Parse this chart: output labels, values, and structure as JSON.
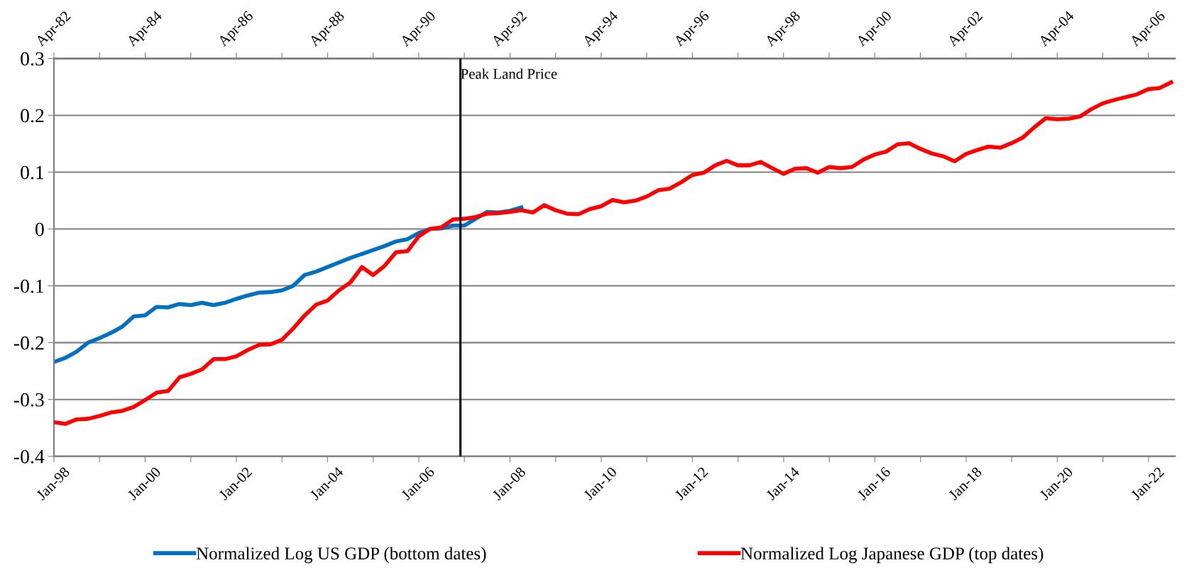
{
  "chart_data": {
    "type": "line",
    "xlim": [
      "1998-01",
      "2022-08"
    ],
    "x2lim": [
      "1982-04",
      "2006-11"
    ],
    "xticks": [
      {
        "value": "1998-01",
        "label": "Jan-98"
      },
      {
        "value": "1999-01",
        "label": null
      },
      {
        "value": "2000-01",
        "label": "Jan-00"
      },
      {
        "value": "2001-01",
        "label": null
      },
      {
        "value": "2002-01",
        "label": "Jan-02"
      },
      {
        "value": "2003-01",
        "label": null
      },
      {
        "value": "2004-01",
        "label": "Jan-04"
      },
      {
        "value": "2005-01",
        "label": null
      },
      {
        "value": "2006-01",
        "label": "Jan-06"
      },
      {
        "value": "2007-01",
        "label": null
      },
      {
        "value": "2008-01",
        "label": "Jan-08"
      },
      {
        "value": "2009-01",
        "label": null
      },
      {
        "value": "2010-01",
        "label": "Jan-10"
      },
      {
        "value": "2011-01",
        "label": null
      },
      {
        "value": "2012-01",
        "label": "Jan-12"
      },
      {
        "value": "2013-01",
        "label": null
      },
      {
        "value": "2014-01",
        "label": "Jan-14"
      },
      {
        "value": "2015-01",
        "label": null
      },
      {
        "value": "2016-01",
        "label": "Jan-16"
      },
      {
        "value": "2017-01",
        "label": null
      },
      {
        "value": "2018-01",
        "label": "Jan-18"
      },
      {
        "value": "2019-01",
        "label": null
      },
      {
        "value": "2020-01",
        "label": "Jan-20"
      },
      {
        "value": "2021-01",
        "label": null
      },
      {
        "value": "2022-01",
        "label": "Jan-22"
      }
    ],
    "x2ticks": [
      {
        "value": "1982-04",
        "label": "Apr-82"
      },
      {
        "value": "1983-04",
        "label": null
      },
      {
        "value": "1984-04",
        "label": "Apr-84"
      },
      {
        "value": "1985-04",
        "label": null
      },
      {
        "value": "1986-04",
        "label": "Apr-86"
      },
      {
        "value": "1987-04",
        "label": null
      },
      {
        "value": "1988-04",
        "label": "Apr-88"
      },
      {
        "value": "1989-04",
        "label": null
      },
      {
        "value": "1990-04",
        "label": "Apr-90"
      },
      {
        "value": "1991-04",
        "label": null
      },
      {
        "value": "1992-04",
        "label": "Apr-92"
      },
      {
        "value": "1993-04",
        "label": null
      },
      {
        "value": "1994-04",
        "label": "Apr-94"
      },
      {
        "value": "1995-04",
        "label": null
      },
      {
        "value": "1996-04",
        "label": "Apr-96"
      },
      {
        "value": "1997-04",
        "label": null
      },
      {
        "value": "1998-04",
        "label": "Apr-98"
      },
      {
        "value": "1999-04",
        "label": null
      },
      {
        "value": "2000-04",
        "label": "Apr-00"
      },
      {
        "value": "2001-04",
        "label": null
      },
      {
        "value": "2002-04",
        "label": "Apr-02"
      },
      {
        "value": "2003-04",
        "label": null
      },
      {
        "value": "2004-04",
        "label": "Apr-04"
      },
      {
        "value": "2005-04",
        "label": null
      },
      {
        "value": "2006-04",
        "label": "Apr-06"
      }
    ],
    "ylim": [
      -0.4,
      0.3
    ],
    "yticks": [
      -0.4,
      -0.3,
      -0.2,
      -0.1,
      0,
      0.1,
      0.2,
      0.3
    ],
    "grid": "y",
    "legend": "bottom",
    "ref_lines": [
      {
        "axis": "x2",
        "value": "1991-03",
        "label": "Peak Land Price",
        "color": "#000000"
      }
    ],
    "series": [
      {
        "name": "Normalized Log US GDP (bottom dates)",
        "color": "#0070c0",
        "x": [
          "1998-01",
          "1998-04",
          "1998-07",
          "1998-10",
          "1999-01",
          "1999-04",
          "1999-07",
          "1999-10",
          "2000-01",
          "2000-04",
          "2000-07",
          "2000-10",
          "2001-01",
          "2001-04",
          "2001-07",
          "2001-10",
          "2002-01",
          "2002-04",
          "2002-07",
          "2002-10",
          "2003-01",
          "2003-04",
          "2003-07",
          "2003-10",
          "2004-01",
          "2004-04",
          "2004-07",
          "2004-10",
          "2005-01",
          "2005-04",
          "2005-07",
          "2005-10",
          "2006-01",
          "2006-04",
          "2006-07",
          "2006-10",
          "2007-01",
          "2007-04",
          "2007-07",
          "2007-10",
          "2008-01",
          "2008-04"
        ],
        "values": [
          -0.234,
          -0.227,
          -0.216,
          -0.2,
          -0.192,
          -0.183,
          -0.172,
          -0.154,
          -0.152,
          -0.137,
          -0.138,
          -0.132,
          -0.134,
          -0.13,
          -0.134,
          -0.13,
          -0.123,
          -0.117,
          -0.112,
          -0.111,
          -0.108,
          -0.1,
          -0.081,
          -0.075,
          -0.067,
          -0.059,
          -0.051,
          -0.044,
          -0.037,
          -0.03,
          -0.022,
          -0.018,
          -0.007,
          0.0,
          0.001,
          0.006,
          0.006,
          0.018,
          0.03,
          0.029,
          0.032,
          0.038
        ]
      },
      {
        "name": "Normalized Log Japanese GDP (top dates)",
        "color": "#ff0000",
        "axis": "x2",
        "x": [
          "1982-04",
          "1982-07",
          "1982-10",
          "1983-01",
          "1983-04",
          "1983-07",
          "1983-10",
          "1984-01",
          "1984-04",
          "1984-07",
          "1984-10",
          "1985-01",
          "1985-04",
          "1985-07",
          "1985-10",
          "1986-01",
          "1986-04",
          "1986-07",
          "1986-10",
          "1987-01",
          "1987-04",
          "1987-07",
          "1987-10",
          "1988-01",
          "1988-04",
          "1988-07",
          "1988-10",
          "1989-01",
          "1989-04",
          "1989-07",
          "1989-10",
          "1990-01",
          "1990-04",
          "1990-07",
          "1990-10",
          "1991-01",
          "1991-04",
          "1991-07",
          "1991-10",
          "1992-01",
          "1992-04",
          "1992-07",
          "1992-10",
          "1993-01",
          "1993-04",
          "1993-07",
          "1993-10",
          "1994-01",
          "1994-04",
          "1994-07",
          "1994-10",
          "1995-01",
          "1995-04",
          "1995-07",
          "1995-10",
          "1996-01",
          "1996-04",
          "1996-07",
          "1996-10",
          "1997-01",
          "1997-04",
          "1997-07",
          "1997-10",
          "1998-01",
          "1998-04",
          "1998-07",
          "1998-10",
          "1999-01",
          "1999-04",
          "1999-07",
          "1999-10",
          "2000-01",
          "2000-04",
          "2000-07",
          "2000-10",
          "2001-01",
          "2001-04",
          "2001-07",
          "2001-10",
          "2002-01",
          "2002-04",
          "2002-07",
          "2002-10",
          "2003-01",
          "2003-04",
          "2003-07",
          "2003-10",
          "2004-01",
          "2004-04",
          "2004-07",
          "2004-10",
          "2005-01",
          "2005-04",
          "2005-07",
          "2005-10",
          "2006-01",
          "2006-04",
          "2006-07",
          "2006-10"
        ],
        "values": [
          -0.34,
          -0.343,
          -0.335,
          -0.334,
          -0.329,
          -0.323,
          -0.32,
          -0.313,
          -0.301,
          -0.288,
          -0.285,
          -0.261,
          -0.255,
          -0.247,
          -0.229,
          -0.229,
          -0.224,
          -0.213,
          -0.204,
          -0.203,
          -0.195,
          -0.175,
          -0.152,
          -0.133,
          -0.126,
          -0.108,
          -0.094,
          -0.067,
          -0.081,
          -0.065,
          -0.041,
          -0.039,
          -0.013,
          0.0,
          0.003,
          0.017,
          0.018,
          0.021,
          0.027,
          0.028,
          0.03,
          0.033,
          0.029,
          0.042,
          0.033,
          0.027,
          0.026,
          0.035,
          0.04,
          0.051,
          0.047,
          0.05,
          0.057,
          0.068,
          0.071,
          0.082,
          0.095,
          0.099,
          0.112,
          0.12,
          0.112,
          0.112,
          0.118,
          0.107,
          0.097,
          0.106,
          0.107,
          0.099,
          0.109,
          0.107,
          0.109,
          0.122,
          0.131,
          0.136,
          0.149,
          0.151,
          0.141,
          0.133,
          0.128,
          0.119,
          0.132,
          0.139,
          0.145,
          0.143,
          0.151,
          0.161,
          0.179,
          0.195,
          0.193,
          0.194,
          0.198,
          0.211,
          0.221,
          0.227,
          0.232,
          0.237,
          0.246,
          0.248,
          0.258
        ]
      }
    ]
  }
}
